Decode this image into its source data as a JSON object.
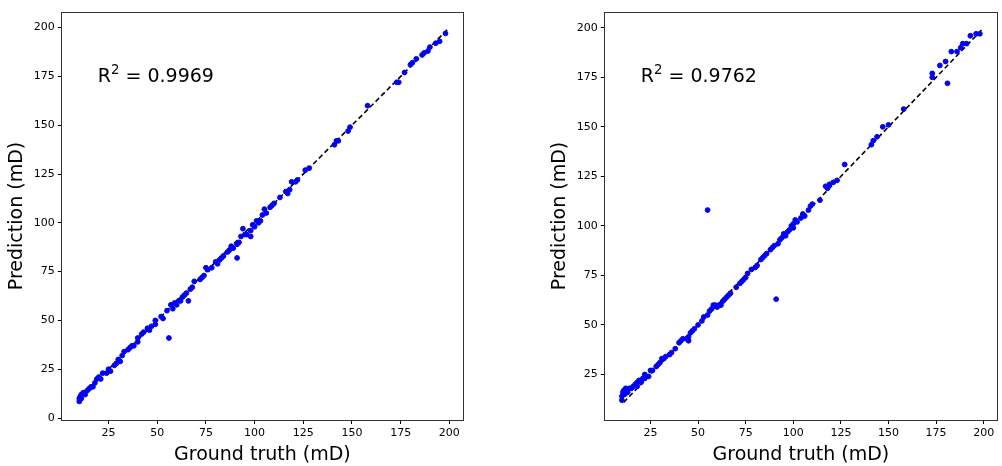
{
  "chart_data": [
    {
      "type": "scatter",
      "xlabel": "Ground truth (mD)",
      "ylabel": "Prediction (mD)",
      "annotations": [
        "R$^{2}$ = 0.9969"
      ],
      "xlim": [
        1,
        207
      ],
      "ylim": [
        -1,
        208
      ],
      "xticks": [
        25,
        50,
        75,
        100,
        125,
        150,
        175,
        200
      ],
      "yticks": [
        0,
        25,
        50,
        75,
        100,
        125,
        150,
        175,
        200
      ],
      "grid": false,
      "legend": false,
      "series": [
        {
          "type": "scatter",
          "marker": "circle",
          "color": "#0000ff",
          "x": [
            10,
            10,
            10.5,
            11,
            11,
            12,
            13,
            14,
            15,
            16,
            17,
            18,
            19,
            20,
            21,
            22,
            24,
            25,
            26,
            28,
            29,
            30,
            31,
            32,
            33,
            35,
            36,
            37,
            38,
            40,
            40,
            42,
            43,
            45,
            46,
            47,
            49,
            49,
            52,
            53,
            55,
            56,
            57,
            58,
            59,
            60,
            61,
            62,
            63,
            64,
            65,
            66,
            67,
            68,
            69,
            72,
            73,
            74,
            75,
            76,
            78,
            80,
            81,
            82,
            83,
            84,
            86,
            87,
            88,
            89,
            91,
            91,
            92,
            93,
            94,
            95,
            96,
            98,
            98,
            99,
            100,
            101,
            102,
            103,
            104,
            105,
            106,
            108,
            109,
            110,
            113,
            116,
            117,
            118,
            119,
            121,
            122,
            126,
            128,
            141,
            142,
            143,
            148,
            149,
            158,
            173,
            174,
            177,
            180,
            181,
            183,
            186,
            187,
            189,
            190,
            193,
            195,
            198
          ],
          "values": [
            8.5,
            10,
            11,
            12,
            10,
            13,
            12,
            14,
            15,
            16,
            16,
            18,
            20,
            21,
            20,
            23,
            23,
            25,
            24,
            27,
            28,
            30,
            29,
            32,
            34,
            35,
            36,
            37,
            37,
            39,
            41,
            43,
            44,
            46,
            45,
            47,
            50,
            48,
            52,
            51,
            55,
            41,
            58,
            56,
            59,
            58,
            60,
            60,
            62,
            63,
            64,
            60,
            66,
            67,
            70,
            71,
            72,
            73,
            77,
            76,
            77,
            80,
            79,
            81,
            82,
            83,
            85,
            86,
            88,
            87,
            82,
            89,
            90,
            93,
            97,
            94,
            94,
            93,
            96,
            99,
            98,
            101,
            100,
            101,
            104,
            107,
            105,
            108,
            109,
            110,
            113,
            116,
            115,
            117,
            121,
            121,
            122,
            127,
            128,
            140,
            142,
            142,
            147,
            149,
            160,
            172,
            172,
            177,
            181,
            182,
            184,
            186,
            187,
            188,
            190,
            192,
            193,
            197
          ]
        },
        {
          "type": "line",
          "color": "#000000",
          "line_style": "dashed",
          "x": [
            10,
            199
          ],
          "values": [
            10,
            199
          ]
        }
      ]
    },
    {
      "type": "scatter",
      "xlabel": "Ground truth (mD)",
      "ylabel": "Prediction (mD)",
      "annotations": [
        "R$^{2}$ = 0.9762"
      ],
      "xlim": [
        1,
        207
      ],
      "ylim": [
        2,
        208
      ],
      "xticks": [
        25,
        50,
        75,
        100,
        125,
        150,
        175,
        200
      ],
      "yticks": [
        25,
        50,
        75,
        100,
        125,
        150,
        175,
        200
      ],
      "grid": false,
      "legend": false,
      "series": [
        {
          "type": "scatter",
          "marker": "circle",
          "color": "#0000ff",
          "x": [
            10,
            10,
            10.5,
            11,
            11.5,
            12,
            13,
            13,
            14,
            15,
            16,
            17,
            18,
            18,
            19,
            20,
            21,
            22,
            22,
            24,
            25,
            26,
            28,
            29,
            30,
            31,
            32,
            33,
            35,
            36,
            38,
            40,
            41,
            42,
            44,
            45,
            45,
            46,
            47,
            48,
            50,
            52,
            53,
            55,
            55,
            56,
            57,
            58,
            59,
            60,
            61,
            62,
            63,
            64,
            65,
            66,
            67,
            70,
            72,
            73,
            74,
            75,
            76,
            78,
            80,
            81,
            83,
            84,
            85,
            86,
            88,
            89,
            90,
            91,
            92,
            93,
            94,
            95,
            96,
            97,
            98,
            99,
            100,
            100,
            101,
            102,
            104,
            105,
            106,
            108,
            109,
            110,
            114,
            117,
            118,
            119,
            121,
            123,
            127,
            141,
            142,
            144,
            147,
            150,
            158,
            173,
            173,
            177,
            180,
            181,
            183,
            186,
            188,
            189,
            191,
            193,
            196,
            198
          ],
          "values": [
            12,
            14,
            16,
            17,
            15,
            18,
            17,
            16,
            18,
            18,
            19,
            20,
            21,
            19,
            22,
            21,
            23,
            25,
            23,
            24,
            27,
            27,
            29,
            30,
            31,
            33,
            33,
            34,
            35,
            36,
            38,
            41,
            42,
            43,
            43,
            42,
            44,
            46,
            47,
            48,
            50,
            52,
            54,
            108,
            55,
            57,
            58,
            60,
            60,
            59,
            60,
            60,
            62,
            63,
            64,
            65,
            66,
            69,
            71,
            72,
            73,
            74,
            76,
            78,
            79,
            80,
            83,
            84,
            85,
            86,
            88,
            89,
            90,
            63,
            91,
            93,
            94,
            96,
            95,
            97,
            98,
            100,
            101,
            99,
            103,
            102,
            104,
            106,
            105,
            108,
            110,
            111,
            113,
            120,
            119,
            121,
            122,
            123,
            131,
            141,
            143,
            145,
            150,
            151,
            159,
            175,
            177,
            181,
            183,
            172,
            188,
            188,
            190,
            192,
            192,
            196,
            197,
            197
          ]
        },
        {
          "type": "line",
          "color": "#000000",
          "line_style": "dashed",
          "x": [
            10,
            199
          ],
          "values": [
            10,
            199
          ]
        }
      ]
    }
  ]
}
